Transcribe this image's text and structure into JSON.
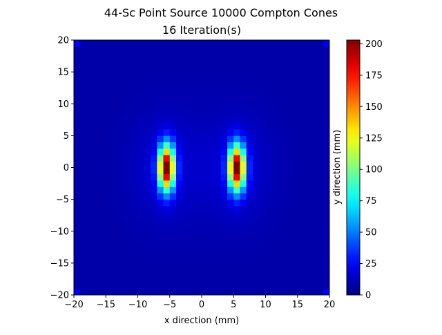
{
  "chart_data": {
    "type": "heatmap",
    "title": "44-Sc Point Source 10000 Compton Cones",
    "subtitle": "16 Iteration(s)",
    "xlabel": "x direction (mm)",
    "ylabel": "y direction (mm)",
    "xlim": [
      -20,
      20
    ],
    "ylim": [
      -20,
      20
    ],
    "x_ticks": [
      -20,
      -15,
      -10,
      -5,
      0,
      5,
      10,
      15,
      20
    ],
    "y_ticks": [
      -20,
      -15,
      -10,
      -5,
      0,
      5,
      10,
      15,
      20
    ],
    "x_tick_labels": [
      "−20",
      "−15",
      "−10",
      "−5",
      "0",
      "5",
      "10",
      "15",
      "20"
    ],
    "y_tick_labels": [
      "−20",
      "−15",
      "−10",
      "−5",
      "0",
      "5",
      "10",
      "15",
      "20"
    ],
    "grid": false,
    "colormap": "jet",
    "colorbar": {
      "range": [
        0,
        203
      ],
      "ticks": [
        0,
        25,
        50,
        75,
        100,
        125,
        150,
        175,
        200
      ],
      "tick_labels": [
        "0",
        "25",
        "50",
        "75",
        "100",
        "125",
        "150",
        "175",
        "200"
      ]
    },
    "bins": 40,
    "bin_width_mm": 1,
    "background_value": 8,
    "corner_value": 22,
    "sources": [
      {
        "x": -5.5,
        "y": 0,
        "peak": 203
      },
      {
        "x": 5.5,
        "y": 0,
        "peak": 203
      }
    ]
  }
}
